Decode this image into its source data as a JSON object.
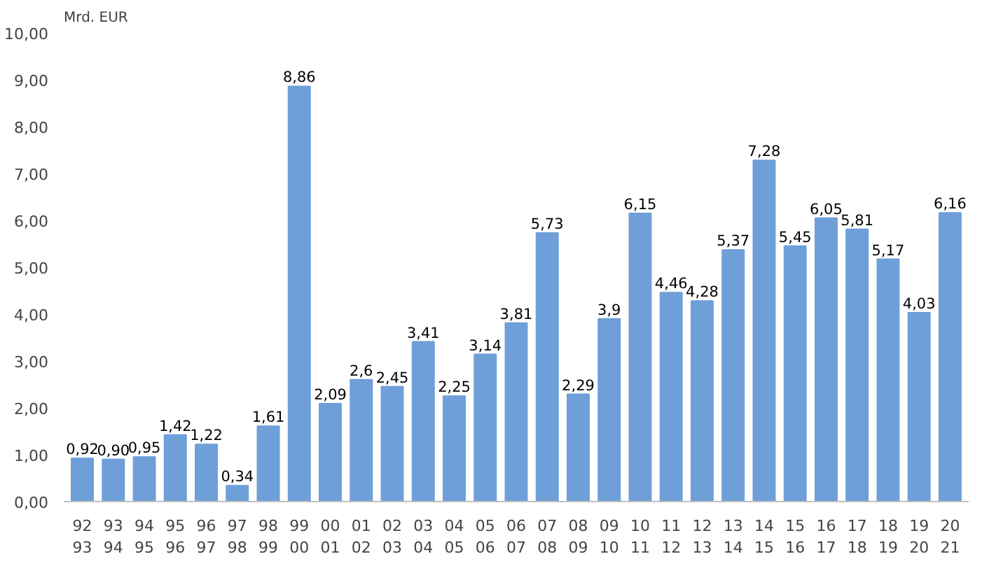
{
  "chart_data": {
    "type": "bar",
    "ylabel": "Mrd. EUR",
    "categories": [
      "92\n93",
      "93\n94",
      "94\n95",
      "95\n96",
      "96\n97",
      "97\n98",
      "98\n99",
      "99\n00",
      "00\n01",
      "01\n02",
      "02\n03",
      "03\n04",
      "04\n05",
      "05\n06",
      "06\n07",
      "07\n08",
      "08\n09",
      "09\n10",
      "10\n11",
      "11\n12",
      "12\n13",
      "13\n14",
      "14\n15",
      "15\n16",
      "16\n17",
      "17\n18",
      "18\n19",
      "19\n20",
      "20\n21"
    ],
    "values": [
      0.92,
      0.9,
      0.95,
      1.42,
      1.22,
      0.34,
      1.61,
      8.86,
      2.09,
      2.6,
      2.45,
      3.41,
      2.25,
      3.14,
      3.81,
      5.73,
      2.29,
      3.9,
      6.15,
      4.46,
      4.28,
      5.37,
      7.28,
      5.45,
      6.05,
      5.81,
      5.17,
      4.03,
      6.16
    ],
    "value_labels": [
      "0,92",
      "0,90",
      "0,95",
      "1,42",
      "1,22",
      "0,34",
      "1,61",
      "8,86",
      "2,09",
      "2,6",
      "2,45",
      "3,41",
      "2,25",
      "3,14",
      "3,81",
      "5,73",
      "2,29",
      "3,9",
      "6,15",
      "4,46",
      "4,28",
      "5,37",
      "7,28",
      "5,45",
      "6,05",
      "5,81",
      "5,17",
      "4,03",
      "6,16"
    ],
    "color": "#6f9fd8",
    "ylim": [
      0,
      10
    ],
    "yticks": [
      {
        "value": 0,
        "label": "0,00"
      },
      {
        "value": 1,
        "label": "1,00"
      },
      {
        "value": 2,
        "label": "2,00"
      },
      {
        "value": 3,
        "label": "3,00"
      },
      {
        "value": 4,
        "label": "4,00"
      },
      {
        "value": 5,
        "label": "5,00"
      },
      {
        "value": 6,
        "label": "6,00"
      },
      {
        "value": 7,
        "label": "7,00"
      },
      {
        "value": 8,
        "label": "8,00"
      },
      {
        "value": 9,
        "label": "9,00"
      },
      {
        "value": 10,
        "label": "10,00"
      }
    ],
    "grid": false
  }
}
